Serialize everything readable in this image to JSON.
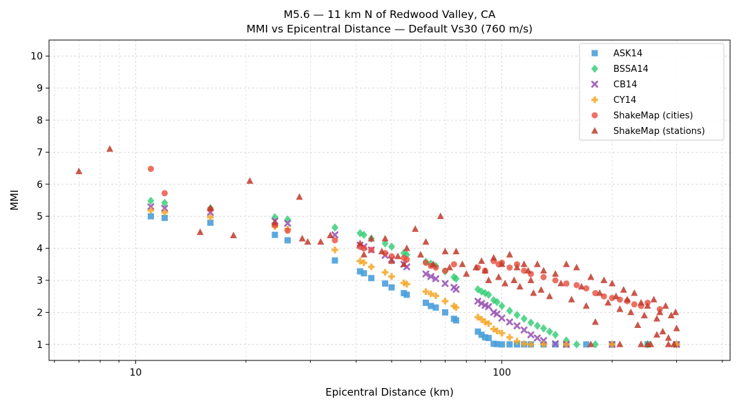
{
  "chart_data": {
    "type": "scatter",
    "title": "M5.6 — 11 km N of Redwood Valley, CA",
    "subtitle": "MMI vs Epicentral Distance — Default Vs30 (760 m/s)",
    "xlabel": "Epicentral Distance (km)",
    "ylabel": "MMI",
    "x_scale": "log",
    "xlim": [
      5.8,
      420
    ],
    "ylim": [
      0.5,
      10.5
    ],
    "x_ticks": [
      {
        "value": 10,
        "label": "10"
      },
      {
        "value": 100,
        "label": "100"
      }
    ],
    "y_ticks": [
      {
        "value": 1,
        "label": "1"
      },
      {
        "value": 2,
        "label": "2"
      },
      {
        "value": 3,
        "label": "3"
      },
      {
        "value": 4,
        "label": "4"
      },
      {
        "value": 5,
        "label": "5"
      },
      {
        "value": 6,
        "label": "6"
      },
      {
        "value": 7,
        "label": "7"
      },
      {
        "value": 8,
        "label": "8"
      },
      {
        "value": 9,
        "label": "9"
      },
      {
        "value": 10,
        "label": "10"
      }
    ],
    "grid": true,
    "legend_position": "top-right",
    "series": [
      {
        "name": "ASK14",
        "marker": "square",
        "color": "#4a9fdb",
        "x": [
          11,
          12,
          16,
          24,
          26,
          35,
          41,
          42,
          44,
          48,
          50,
          54,
          55,
          62,
          64,
          66,
          70,
          74,
          75,
          86,
          88,
          90,
          92,
          95,
          97,
          100,
          105,
          110,
          115,
          120,
          130,
          140,
          150,
          170,
          200,
          250,
          300
        ],
        "y": [
          5.0,
          4.95,
          4.8,
          4.42,
          4.25,
          3.62,
          3.28,
          3.22,
          3.07,
          2.9,
          2.78,
          2.6,
          2.55,
          2.3,
          2.2,
          2.15,
          2.0,
          1.8,
          1.75,
          1.4,
          1.3,
          1.22,
          1.2,
          1.02,
          1.01,
          1.0,
          1.0,
          1.0,
          1.0,
          1.0,
          1.0,
          1.0,
          1.0,
          1.0,
          1.0,
          1.0,
          1.0
        ]
      },
      {
        "name": "BSSA14",
        "marker": "diamond",
        "color": "#2ecc71",
        "x": [
          11,
          12,
          16,
          24,
          26,
          35,
          41,
          42,
          44,
          48,
          50,
          54,
          55,
          62,
          64,
          66,
          70,
          74,
          75,
          86,
          88,
          90,
          92,
          95,
          97,
          100,
          105,
          110,
          115,
          120,
          125,
          130,
          135,
          140,
          150,
          160,
          180,
          200,
          250,
          300
        ],
        "y": [
          5.48,
          5.42,
          5.25,
          4.97,
          4.9,
          4.65,
          4.47,
          4.42,
          4.3,
          4.15,
          4.05,
          3.85,
          3.8,
          3.58,
          3.52,
          3.45,
          3.28,
          3.1,
          3.05,
          2.72,
          2.65,
          2.6,
          2.55,
          2.38,
          2.32,
          2.2,
          2.05,
          1.92,
          1.8,
          1.68,
          1.58,
          1.5,
          1.4,
          1.3,
          1.12,
          1.0,
          1.0,
          1.0,
          1.0,
          1.0
        ]
      },
      {
        "name": "CB14",
        "marker": "x",
        "color": "#9b59b6",
        "x": [
          11,
          12,
          16,
          24,
          26,
          35,
          41,
          42,
          44,
          48,
          50,
          54,
          55,
          62,
          64,
          66,
          70,
          74,
          75,
          86,
          88,
          90,
          92,
          95,
          97,
          100,
          105,
          110,
          115,
          120,
          125,
          130,
          140,
          150,
          200,
          300
        ],
        "y": [
          5.3,
          5.25,
          5.12,
          4.85,
          4.78,
          4.42,
          4.1,
          4.05,
          3.95,
          3.78,
          3.65,
          3.5,
          3.42,
          3.2,
          3.12,
          3.05,
          2.9,
          2.78,
          2.72,
          2.35,
          2.28,
          2.22,
          2.18,
          2.0,
          1.95,
          1.82,
          1.7,
          1.58,
          1.45,
          1.3,
          1.2,
          1.12,
          1.02,
          1.0,
          1.0,
          1.0
        ]
      },
      {
        "name": "CY14",
        "marker": "plus",
        "color": "#f5a623",
        "x": [
          11,
          12,
          16,
          24,
          26,
          35,
          41,
          42,
          44,
          48,
          50,
          54,
          55,
          62,
          64,
          66,
          70,
          74,
          75,
          86,
          88,
          90,
          92,
          95,
          97,
          100,
          105,
          110,
          115,
          120,
          130,
          150,
          200,
          300
        ],
        "y": [
          5.18,
          5.12,
          4.97,
          4.68,
          4.6,
          3.95,
          3.6,
          3.55,
          3.42,
          3.25,
          3.12,
          2.92,
          2.88,
          2.65,
          2.58,
          2.52,
          2.35,
          2.2,
          2.15,
          1.85,
          1.78,
          1.7,
          1.65,
          1.48,
          1.42,
          1.35,
          1.22,
          1.1,
          1.02,
          1.0,
          1.0,
          1.0,
          1.0,
          1.0
        ]
      },
      {
        "name": "ShakeMap (cities)",
        "marker": "circle",
        "color": "#e74c3c",
        "x": [
          11,
          12,
          16,
          24,
          26,
          35,
          41,
          42,
          44,
          48,
          50,
          54,
          55,
          62,
          64,
          66,
          70,
          74,
          86,
          90,
          95,
          98,
          100,
          105,
          110,
          115,
          120,
          130,
          140,
          150,
          160,
          170,
          180,
          190,
          200,
          210,
          220,
          230,
          240,
          250,
          270
        ],
        "y": [
          6.48,
          5.72,
          5.22,
          4.72,
          4.55,
          4.25,
          4.05,
          4.0,
          3.95,
          3.85,
          3.75,
          3.7,
          3.65,
          3.55,
          3.45,
          3.4,
          3.3,
          3.5,
          3.4,
          3.3,
          3.6,
          3.5,
          3.55,
          3.4,
          3.5,
          3.3,
          3.2,
          3.1,
          3.0,
          2.9,
          2.85,
          2.75,
          2.6,
          2.5,
          2.45,
          2.4,
          2.35,
          2.25,
          2.2,
          2.3,
          2.1
        ]
      },
      {
        "name": "ShakeMap (stations)",
        "marker": "triangle",
        "color": "#c0392b",
        "x": [
          7,
          8.5,
          15,
          16,
          18.5,
          20.5,
          24,
          28,
          28.5,
          29.5,
          32,
          34,
          41,
          42,
          44,
          47,
          48,
          50,
          52,
          54,
          55,
          58,
          60,
          62,
          65,
          68,
          70,
          72,
          75,
          78,
          80,
          85,
          88,
          90,
          92,
          95,
          98,
          100,
          102,
          105,
          108,
          110,
          112,
          115,
          118,
          120,
          122,
          125,
          128,
          130,
          135,
          140,
          145,
          150,
          155,
          160,
          165,
          170,
          175,
          180,
          185,
          190,
          195,
          200,
          205,
          210,
          215,
          220,
          225,
          230,
          235,
          240,
          245,
          250,
          255,
          260,
          265,
          270,
          275,
          280,
          285,
          290,
          295,
          300,
          240,
          265,
          285,
          298,
          175,
          210,
          250
        ],
        "y": [
          6.4,
          7.1,
          4.5,
          5.25,
          4.4,
          6.1,
          4.8,
          5.6,
          4.3,
          4.2,
          4.2,
          4.4,
          4.15,
          3.8,
          4.3,
          3.9,
          4.3,
          3.6,
          3.75,
          3.5,
          4.0,
          4.6,
          3.8,
          4.2,
          3.5,
          5.0,
          3.9,
          3.4,
          3.9,
          3.5,
          3.2,
          3.4,
          3.6,
          3.3,
          3.0,
          3.7,
          3.1,
          3.5,
          2.9,
          3.8,
          3.0,
          3.4,
          2.8,
          3.5,
          3.3,
          3.0,
          2.6,
          3.5,
          2.7,
          3.3,
          2.5,
          3.2,
          2.9,
          3.5,
          2.4,
          3.4,
          2.8,
          2.2,
          3.1,
          1.7,
          2.6,
          3.0,
          2.3,
          2.9,
          2.5,
          2.1,
          2.7,
          2.4,
          2.0,
          2.6,
          1.6,
          2.3,
          1.9,
          2.2,
          1.0,
          2.4,
          1.8,
          2.0,
          1.4,
          2.2,
          1.2,
          1.9,
          1.0,
          1.5,
          1.0,
          1.3,
          1.0,
          2.0,
          1.0,
          1.0,
          1.0
        ]
      }
    ]
  }
}
